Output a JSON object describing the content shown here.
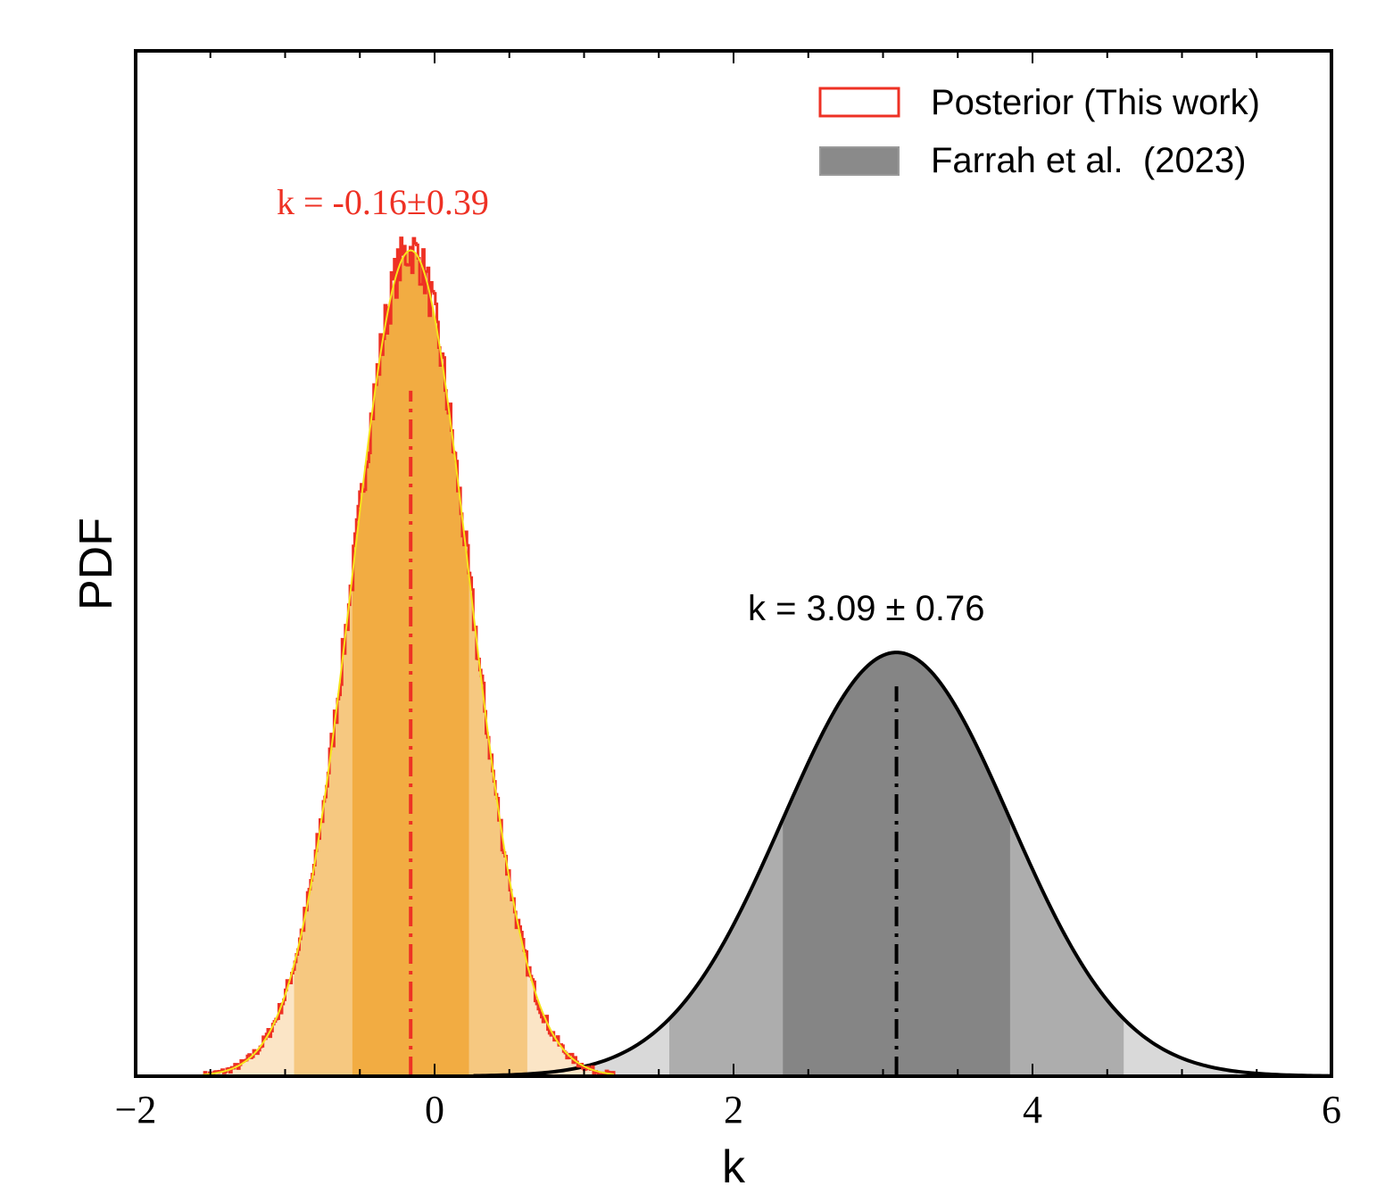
{
  "chart_data": {
    "type": "area",
    "title": "",
    "xlabel": "k",
    "ylabel": "PDF",
    "xlim": [
      -2,
      6
    ],
    "ylim": [
      0,
      1.27
    ],
    "xticks": [
      -2,
      0,
      2,
      4,
      6
    ],
    "xtick_labels": [
      "−2",
      "0",
      "2",
      "4",
      "6"
    ],
    "minor_xtick_step": 0.5,
    "yticks_shown": false,
    "grid": false,
    "legend_placement": "top-right",
    "series": [
      {
        "name": "Posterior (This work)",
        "kind": "histogram with gaussian fit",
        "mean": -0.16,
        "sigma": 0.39,
        "range": [
          -1.55,
          1.2
        ],
        "edge_color": "#ee3124",
        "fit_color": "#f7e41a",
        "band_colors": [
          "#f2ac42",
          "#f6c880",
          "#fbe5c6"
        ],
        "annotation": "k = -0.16±0.39",
        "annotation_color": "#ee3124"
      },
      {
        "name": "Farrah et al.  (2023)",
        "kind": "gaussian",
        "mean": 3.09,
        "sigma": 0.76,
        "line_color": "#000000",
        "band_colors": [
          "#858585",
          "#adadad",
          "#d9d9d9"
        ],
        "annotation": "k = 3.09 ± 0.76",
        "annotation_color": "#000000"
      }
    ]
  }
}
